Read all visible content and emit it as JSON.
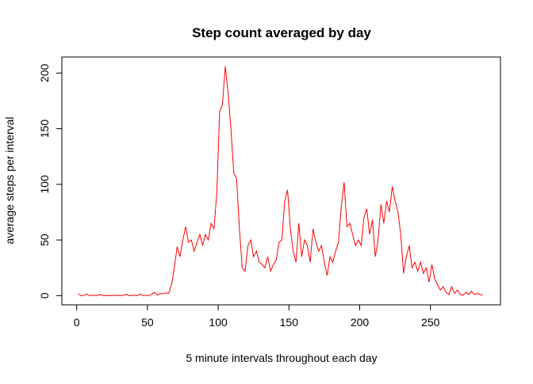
{
  "chart_data": {
    "type": "line",
    "title": "Step count averaged by day",
    "x_label": "5 minute intervals throughout each day",
    "y_label": "average steps per interval",
    "x": [
      1,
      3,
      5,
      7,
      9,
      11,
      13,
      15,
      17,
      19,
      21,
      23,
      25,
      27,
      29,
      31,
      33,
      35,
      37,
      39,
      41,
      43,
      45,
      47,
      49,
      51,
      53,
      55,
      57,
      59,
      61,
      63,
      65,
      67,
      69,
      71,
      73,
      75,
      77,
      79,
      81,
      83,
      85,
      87,
      89,
      91,
      93,
      95,
      97,
      99,
      101,
      103,
      105,
      107,
      109,
      111,
      113,
      115,
      117,
      119,
      121,
      123,
      125,
      127,
      129,
      131,
      133,
      135,
      137,
      139,
      141,
      143,
      145,
      147,
      149,
      151,
      153,
      155,
      157,
      159,
      161,
      163,
      165,
      167,
      169,
      171,
      173,
      175,
      177,
      179,
      181,
      183,
      185,
      187,
      189,
      191,
      193,
      195,
      197,
      199,
      201,
      203,
      205,
      207,
      209,
      211,
      213,
      215,
      217,
      219,
      221,
      223,
      225,
      227,
      229,
      231,
      233,
      235,
      237,
      239,
      241,
      243,
      245,
      247,
      249,
      251,
      253,
      255,
      257,
      259,
      261,
      263,
      265,
      267,
      269,
      271,
      273,
      275,
      277,
      279,
      281,
      283,
      285,
      287
    ],
    "series": [
      {
        "color": "#ff0000",
        "values": [
          1.7,
          0.1,
          0,
          1.5,
          0,
          0.5,
          0,
          0.3,
          1,
          0,
          0.2,
          0,
          0,
          0.5,
          0,
          0,
          0.3,
          1.2,
          0,
          0,
          0.5,
          0,
          1.5,
          0,
          0.4,
          0,
          1.2,
          3,
          0.5,
          2,
          1.5,
          2.5,
          2.2,
          10,
          25,
          44,
          35,
          50,
          62,
          48,
          50,
          40,
          48,
          55,
          45,
          55,
          50,
          65,
          60,
          92,
          165,
          172,
          206.2,
          182,
          150,
          110,
          105,
          60,
          25,
          22,
          45,
          50,
          35,
          40,
          30,
          28,
          25,
          35,
          22,
          28,
          32,
          48,
          50,
          85,
          95,
          60,
          40,
          30,
          65,
          35,
          50,
          45,
          30,
          60,
          48,
          40,
          45,
          30,
          18,
          35,
          30,
          40,
          48,
          80,
          102,
          62,
          65,
          55,
          45,
          50,
          45,
          70,
          78,
          55,
          68,
          35,
          50,
          82,
          65,
          85,
          75,
          98,
          85,
          75,
          55,
          20,
          35,
          45,
          25,
          30,
          22,
          30,
          20,
          25,
          12,
          28,
          15,
          10,
          5,
          8,
          3,
          1,
          8,
          2,
          5,
          1,
          0.5,
          3,
          1,
          4,
          1,
          2,
          1,
          0.5
        ]
      }
    ],
    "xlim": [
      -10.48,
      299.48
    ],
    "ylim": [
      -8.25,
      214.42
    ],
    "xticks": [
      0,
      50,
      100,
      150,
      200,
      250
    ],
    "yticks": [
      0,
      50,
      100,
      150,
      200
    ]
  }
}
